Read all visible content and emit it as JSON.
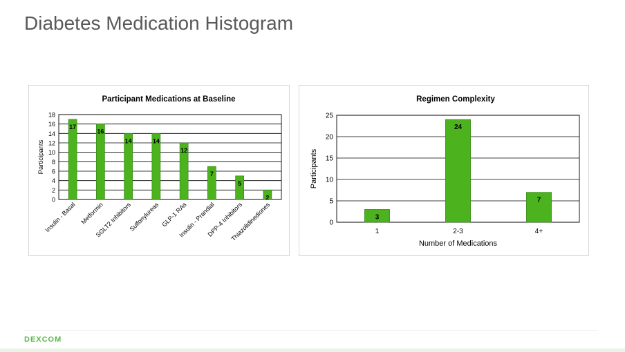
{
  "page": {
    "title": "Diabetes Medication Histogram",
    "logo_text": "DEXCOM"
  },
  "colors": {
    "bar": "#4cb31f",
    "bar_stroke": "#2e7d12",
    "grid": "#000000",
    "title_text": "#595959",
    "logo": "#58b947"
  },
  "chart_data": [
    {
      "type": "bar",
      "title": "Participant Medications at Baseline",
      "xlabel": "",
      "ylabel": "Participants",
      "categories": [
        "Insulin - Basal",
        "Metformin",
        "SGLT2 Inhibitors",
        "Sulfonylureas",
        "GLP-1 RAs",
        "Insulin - Prandial",
        "DPP-4 Inhibitors",
        "Thiazolidinediones"
      ],
      "values": [
        17,
        16,
        14,
        14,
        12,
        7,
        5,
        2
      ],
      "data_labels": [
        "17",
        "16",
        "14",
        "14",
        "12",
        "7",
        "5",
        "2"
      ],
      "ylim": [
        0,
        18
      ],
      "yticks": [
        "0",
        "2",
        "4",
        "6",
        "8",
        "10",
        "12",
        "14",
        "16",
        "18"
      ],
      "grid": true,
      "legend": "none"
    },
    {
      "type": "bar",
      "title": "Regimen Complexity",
      "xlabel": "Number of Medications",
      "ylabel": "Participants",
      "categories": [
        "1",
        "2-3",
        "4+"
      ],
      "values": [
        3,
        24,
        7
      ],
      "data_labels": [
        "3",
        "24",
        "7"
      ],
      "ylim": [
        0,
        25
      ],
      "yticks": [
        "0",
        "5",
        "10",
        "15",
        "20",
        "25"
      ],
      "grid": true,
      "legend": "none"
    }
  ]
}
